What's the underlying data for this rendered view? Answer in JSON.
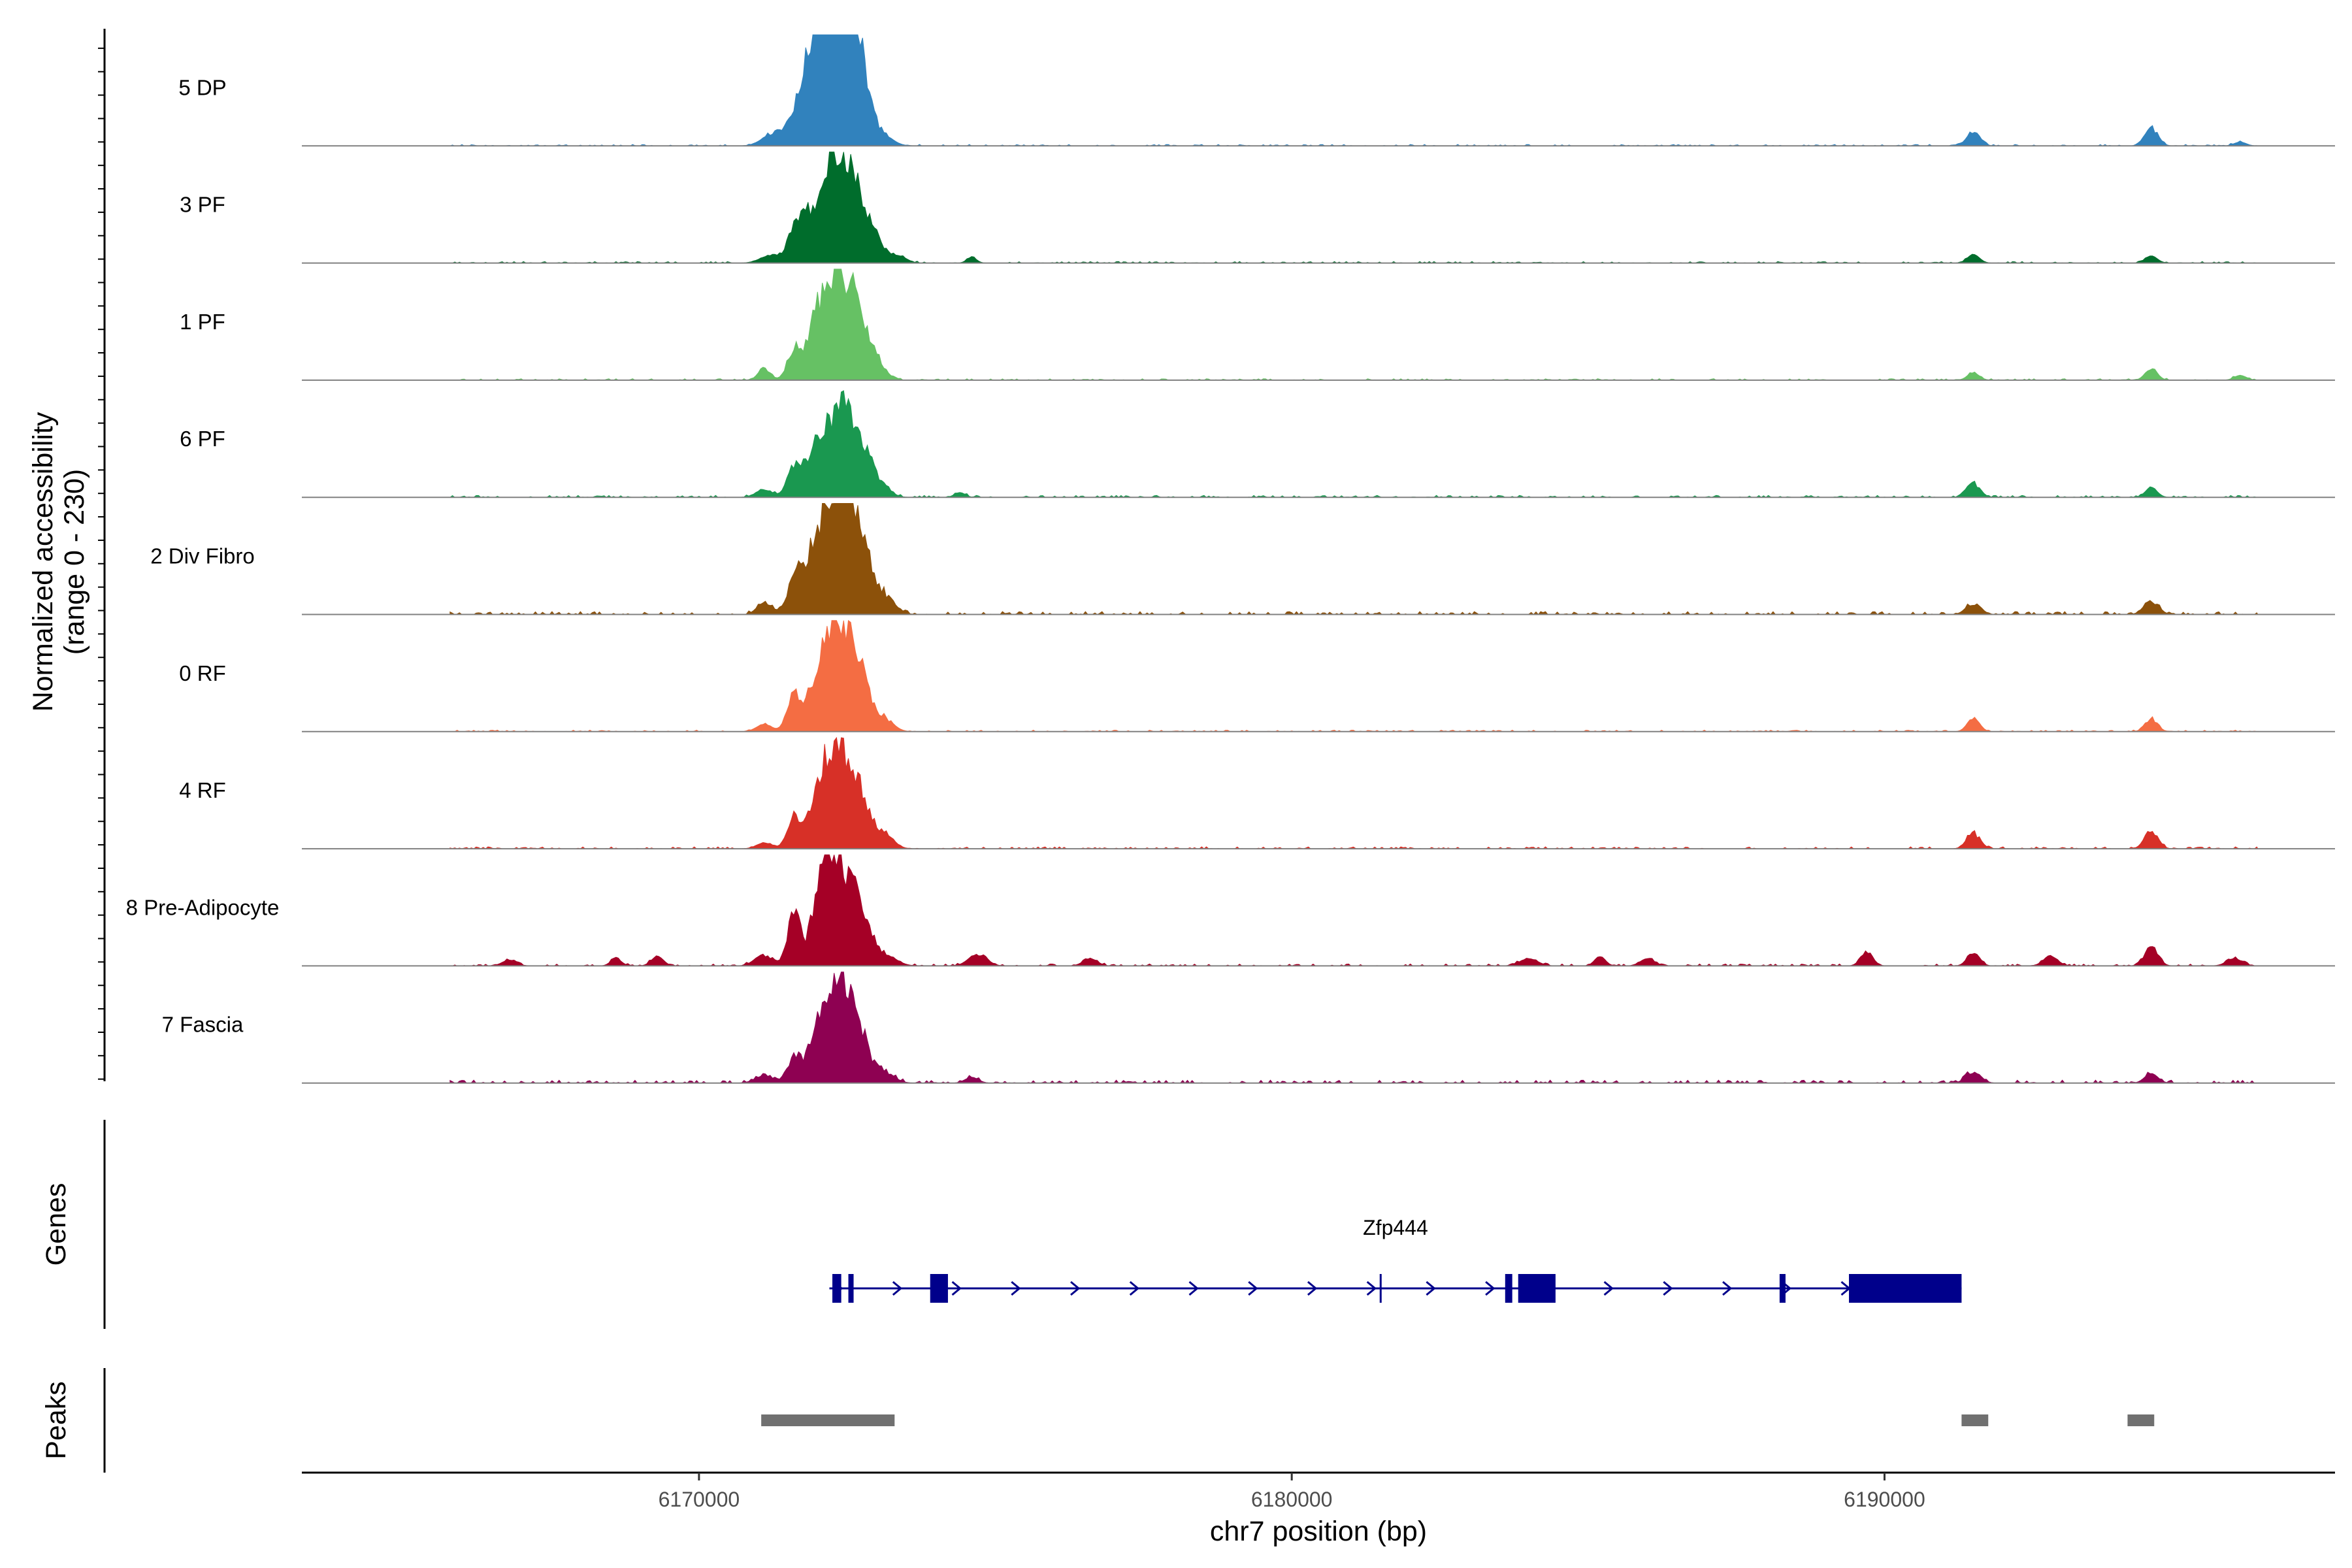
{
  "chart_data": {
    "type": "area",
    "description_type": "coverage tracks",
    "y_axis_title_line1": "Normalized accessibility",
    "y_axis_title_line2": "(range 0 - 230)",
    "ylim": [
      0,
      230
    ],
    "x_axis_title": "chr7 position (bp)",
    "xlim": [
      6163300,
      6197600
    ],
    "x_ticks": [
      6170000,
      6180000,
      6190000
    ],
    "x_tick_labels": [
      "6170000",
      "6180000",
      "6190000"
    ],
    "tracks": [
      {
        "name": "5 DP",
        "color": "#3182bd",
        "peaks": [
          [
            6171200,
            18,
            170
          ],
          [
            6171500,
            30,
            180
          ],
          [
            6171800,
            70,
            150
          ],
          [
            6172000,
            120,
            230
          ],
          [
            6172200,
            175,
            190
          ],
          [
            6172400,
            200,
            230
          ],
          [
            6172600,
            150,
            170
          ],
          [
            6172800,
            60,
            160
          ],
          [
            6173100,
            20,
            170
          ],
          [
            6191500,
            30,
            110
          ],
          [
            6194500,
            40,
            110
          ],
          [
            6196000,
            8,
            100
          ]
        ],
        "noise": 1.5
      },
      {
        "name": "3 PF",
        "color": "#006d2c",
        "peaks": [
          [
            6171200,
            15,
            170
          ],
          [
            6171600,
            55,
            120
          ],
          [
            6171800,
            30,
            120
          ],
          [
            6172100,
            130,
            250
          ],
          [
            6172400,
            170,
            200
          ],
          [
            6172700,
            110,
            170
          ],
          [
            6173000,
            40,
            170
          ],
          [
            6173400,
            12,
            120
          ],
          [
            6174600,
            12,
            80
          ],
          [
            6191500,
            18,
            100
          ],
          [
            6194500,
            15,
            100
          ]
        ],
        "noise": 1.5
      },
      {
        "name": "1 PF",
        "color": "#66c164",
        "peaks": [
          [
            6171100,
            25,
            100
          ],
          [
            6171600,
            60,
            110
          ],
          [
            6171900,
            30,
            100
          ],
          [
            6172100,
            140,
            220
          ],
          [
            6172400,
            170,
            200
          ],
          [
            6172700,
            100,
            180
          ],
          [
            6173000,
            30,
            150
          ],
          [
            6191500,
            15,
            100
          ],
          [
            6194500,
            25,
            100
          ],
          [
            6196000,
            10,
            100
          ]
        ],
        "noise": 1.5
      },
      {
        "name": "6 PF",
        "color": "#1a9850",
        "peaks": [
          [
            6171100,
            15,
            140
          ],
          [
            6171600,
            50,
            110
          ],
          [
            6172000,
            110,
            230
          ],
          [
            6172400,
            160,
            200
          ],
          [
            6172700,
            90,
            170
          ],
          [
            6173000,
            35,
            170
          ],
          [
            6174400,
            10,
            90
          ],
          [
            6191500,
            30,
            110
          ],
          [
            6194500,
            20,
            100
          ]
        ],
        "noise": 2
      },
      {
        "name": "2 Div Fibro",
        "color": "#8c510a",
        "peaks": [
          [
            6171100,
            25,
            120
          ],
          [
            6171600,
            45,
            110
          ],
          [
            6172000,
            150,
            250
          ],
          [
            6172400,
            200,
            220
          ],
          [
            6172700,
            140,
            190
          ],
          [
            6173100,
            40,
            180
          ],
          [
            6191500,
            25,
            120
          ],
          [
            6194500,
            30,
            120
          ]
        ],
        "noise": 3
      },
      {
        "name": "0 RF",
        "color": "#f46d43",
        "peaks": [
          [
            6171100,
            15,
            130
          ],
          [
            6171600,
            75,
            110
          ],
          [
            6172100,
            150,
            230
          ],
          [
            6172400,
            160,
            200
          ],
          [
            6172700,
            110,
            170
          ],
          [
            6173100,
            30,
            160
          ],
          [
            6191500,
            30,
            100
          ],
          [
            6194500,
            30,
            100
          ]
        ],
        "noise": 1.5
      },
      {
        "name": "4 RF",
        "color": "#d73027",
        "peaks": [
          [
            6171100,
            12,
            130
          ],
          [
            6171600,
            60,
            110
          ],
          [
            6172100,
            140,
            230
          ],
          [
            6172400,
            150,
            200
          ],
          [
            6172700,
            100,
            170
          ],
          [
            6173100,
            35,
            160
          ],
          [
            6191500,
            35,
            110
          ],
          [
            6194500,
            40,
            110
          ]
        ],
        "noise": 2
      },
      {
        "name": "8 Pre-Adipocyte",
        "color": "#a50026",
        "peaks": [
          [
            6171100,
            25,
            150
          ],
          [
            6171600,
            120,
            100
          ],
          [
            6172100,
            190,
            180
          ],
          [
            6172400,
            170,
            200
          ],
          [
            6172700,
            90,
            180
          ],
          [
            6173100,
            25,
            200
          ],
          [
            6166800,
            12,
            120
          ],
          [
            6168600,
            15,
            90
          ],
          [
            6169300,
            20,
            100
          ],
          [
            6174700,
            25,
            150
          ],
          [
            6176600,
            15,
            120
          ],
          [
            6184000,
            15,
            150
          ],
          [
            6185200,
            20,
            90
          ],
          [
            6186000,
            15,
            120
          ],
          [
            6189700,
            30,
            100
          ],
          [
            6191500,
            30,
            100
          ],
          [
            6192800,
            20,
            120
          ],
          [
            6194500,
            45,
            110
          ],
          [
            6195900,
            15,
            130
          ]
        ],
        "noise": 2
      },
      {
        "name": "7 Fascia",
        "color": "#8e0152",
        "peaks": [
          [
            6171100,
            15,
            150
          ],
          [
            6171600,
            45,
            110
          ],
          [
            6172100,
            130,
            230
          ],
          [
            6172400,
            150,
            200
          ],
          [
            6172700,
            90,
            170
          ],
          [
            6173100,
            25,
            170
          ],
          [
            6174600,
            12,
            110
          ],
          [
            6191500,
            25,
            120
          ],
          [
            6194500,
            20,
            110
          ]
        ],
        "noise": 3
      }
    ],
    "genes_label": "Genes",
    "gene": {
      "name": "Zfp444",
      "color": "#00008b",
      "start": 6172200,
      "end": 6191300,
      "strand": "+",
      "exons": [
        [
          6172250,
          6172400
        ],
        [
          6172520,
          6172600
        ],
        [
          6173900,
          6174200
        ],
        [
          6183600,
          6183720
        ],
        [
          6183820,
          6184450
        ],
        [
          6188230,
          6188330
        ],
        [
          6189400,
          6191300
        ]
      ],
      "thin_marks": [
        6181500
      ]
    },
    "peaks_label": "Peaks",
    "peak_regions": [
      [
        6171050,
        6173300
      ],
      [
        6191300,
        6191750
      ],
      [
        6194100,
        6194550
      ]
    ],
    "peak_color": "#707070"
  }
}
